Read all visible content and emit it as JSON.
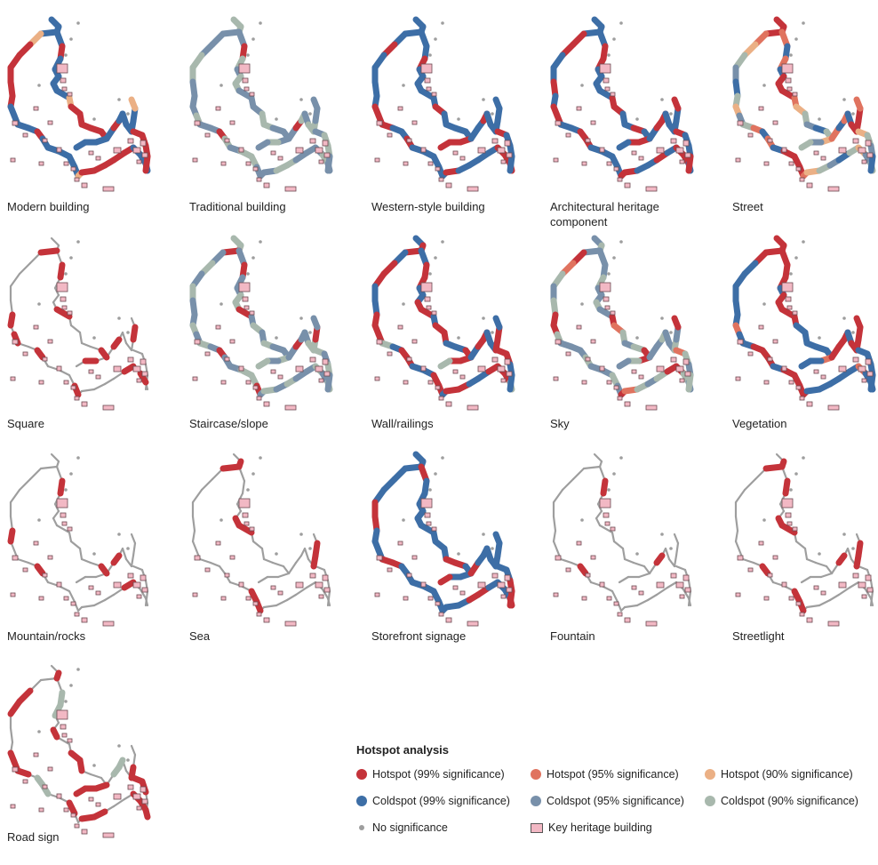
{
  "colors": {
    "hot99": "#c4333a",
    "hot95": "#e0735f",
    "hot90": "#ebb085",
    "cold99": "#3d6ea6",
    "cold95": "#7890aa",
    "cold90": "#a8b8ad",
    "none": "#9e9e9e",
    "building_fill": "#f2b8c4",
    "building_stroke": "#6b4a52"
  },
  "panels": [
    {
      "label": "Modern building",
      "pattern": [
        "cold99",
        "cold99",
        "cold99",
        "hot90",
        "hot99",
        "hot99",
        "hot99",
        "hot99",
        "hot99",
        "cold99",
        "cold99",
        "cold99",
        "cold99",
        "hot99",
        "cold99",
        "cold99"
      ]
    },
    {
      "label": "Traditional building",
      "pattern": [
        "cold90",
        "cold90",
        "cold95",
        "cold95",
        "cold95",
        "cold90",
        "cold90",
        "cold95",
        "cold95",
        "cold95",
        "cold90",
        "cold95",
        "cold95",
        "hot99",
        "cold90",
        "cold95"
      ]
    },
    {
      "label": "Western-style building",
      "pattern": [
        "cold99",
        "cold99",
        "cold99",
        "cold99",
        "hot99",
        "cold99",
        "cold99",
        "cold99",
        "cold99",
        "hot99",
        "hot99",
        "hot99",
        "cold99",
        "cold99",
        "hot99",
        "cold99"
      ]
    },
    {
      "label": "Architectural heritage component",
      "pattern": [
        "cold99",
        "cold99",
        "cold99",
        "hot99",
        "hot99",
        "cold99",
        "cold99",
        "hot99",
        "cold99",
        "hot99",
        "hot99",
        "cold99",
        "cold99",
        "hot99",
        "hot99",
        "cold99"
      ]
    },
    {
      "label": "Street",
      "pattern": [
        "hot99",
        "hot99",
        "hot99",
        "hot95",
        "hot90",
        "cold90",
        "cold95",
        "cold99",
        "cold90",
        "hot90",
        "cold95",
        "cold90",
        "hot95",
        "cold99",
        "hot95",
        "cold99"
      ]
    },
    {
      "label": "Square",
      "pattern": [
        "none",
        "none",
        "hot99",
        "none",
        "none",
        "none",
        "none",
        "none",
        "hot99",
        "none",
        "hot99",
        "none",
        "none",
        "hot99",
        "none",
        "none"
      ]
    },
    {
      "label": "Staircase/slope",
      "pattern": [
        "cold90",
        "cold90",
        "hot99",
        "cold95",
        "cold90",
        "cold95",
        "cold90",
        "cold95",
        "cold95",
        "cold90",
        "cold95",
        "cold90",
        "cold95",
        "hot99",
        "cold95",
        "cold95"
      ]
    },
    {
      "label": "Wall/railings",
      "pattern": [
        "cold99",
        "hot99",
        "hot99",
        "cold99",
        "hot99",
        "hot99",
        "cold99",
        "cold99",
        "hot99",
        "hot99",
        "hot99",
        "cold90",
        "cold99",
        "hot99",
        "hot99",
        "cold99"
      ]
    },
    {
      "label": "Sky",
      "pattern": [
        "cold95",
        "cold90",
        "cold95",
        "hot99",
        "hot95",
        "cold90",
        "cold95",
        "cold90",
        "hot99",
        "hot99",
        "cold90",
        "cold95",
        "cold95",
        "cold95",
        "cold90",
        "cold95"
      ]
    },
    {
      "label": "Vegetation",
      "pattern": [
        "hot99",
        "hot99",
        "hot99",
        "hot99",
        "cold99",
        "cold99",
        "cold99",
        "cold99",
        "cold99",
        "hot95",
        "cold99",
        "cold99",
        "hot99",
        "hot99",
        "hot99",
        "cold99"
      ]
    },
    {
      "label": "Mountain/rocks",
      "pattern": [
        "none",
        "none",
        "none",
        "none",
        "none",
        "none",
        "none",
        "none",
        "hot99",
        "none",
        "none",
        "none",
        "none",
        "hot99",
        "none",
        "none"
      ]
    },
    {
      "label": "Sea",
      "pattern": [
        "none",
        "hot99",
        "hot99",
        "none",
        "none",
        "none",
        "none",
        "none",
        "none",
        "none",
        "none",
        "none",
        "none",
        "none",
        "none",
        "none"
      ]
    },
    {
      "label": "Storefront signage",
      "pattern": [
        "cold99",
        "cold99",
        "cold99",
        "cold99",
        "cold99",
        "cold99",
        "hot99",
        "hot99",
        "cold99",
        "cold99",
        "cold99",
        "hot99",
        "hot99",
        "cold99",
        "cold99",
        "cold99"
      ]
    },
    {
      "label": "Fountain",
      "pattern": [
        "none",
        "none",
        "none",
        "none",
        "none",
        "none",
        "none",
        "none",
        "none",
        "none",
        "none",
        "none",
        "none",
        "hot99",
        "none",
        "none"
      ]
    },
    {
      "label": "Streetlight",
      "pattern": [
        "none",
        "hot99",
        "hot99",
        "none",
        "none",
        "none",
        "none",
        "none",
        "none",
        "none",
        "none",
        "none",
        "none",
        "hot99",
        "none",
        "none"
      ]
    },
    {
      "label": "Road sign",
      "pattern": [
        "none",
        "hot99",
        "none",
        "none",
        "hot99",
        "hot99",
        "none",
        "none",
        "none",
        "hot99",
        "hot99",
        "hot99",
        "none",
        "cold90",
        "cold90",
        "none"
      ]
    }
  ],
  "legend": {
    "title": "Hotspot analysis",
    "items": [
      {
        "key": "hot99",
        "label": "Hotspot (99% significance)",
        "kind": "dot"
      },
      {
        "key": "hot95",
        "label": "Hotspot (95% significance)",
        "kind": "dot"
      },
      {
        "key": "hot90",
        "label": "Hotspot (90% significance)",
        "kind": "dot"
      },
      {
        "key": "cold99",
        "label": "Coldspot (99% significance)",
        "kind": "dot"
      },
      {
        "key": "cold95",
        "label": "Coldspot (95% significance)",
        "kind": "dot"
      },
      {
        "key": "cold90",
        "label": "Coldspot (90% significance)",
        "kind": "dot"
      },
      {
        "key": "none",
        "label": "No significance",
        "kind": "small"
      },
      {
        "key": "building",
        "label": "Key heritage building",
        "kind": "square"
      }
    ]
  }
}
